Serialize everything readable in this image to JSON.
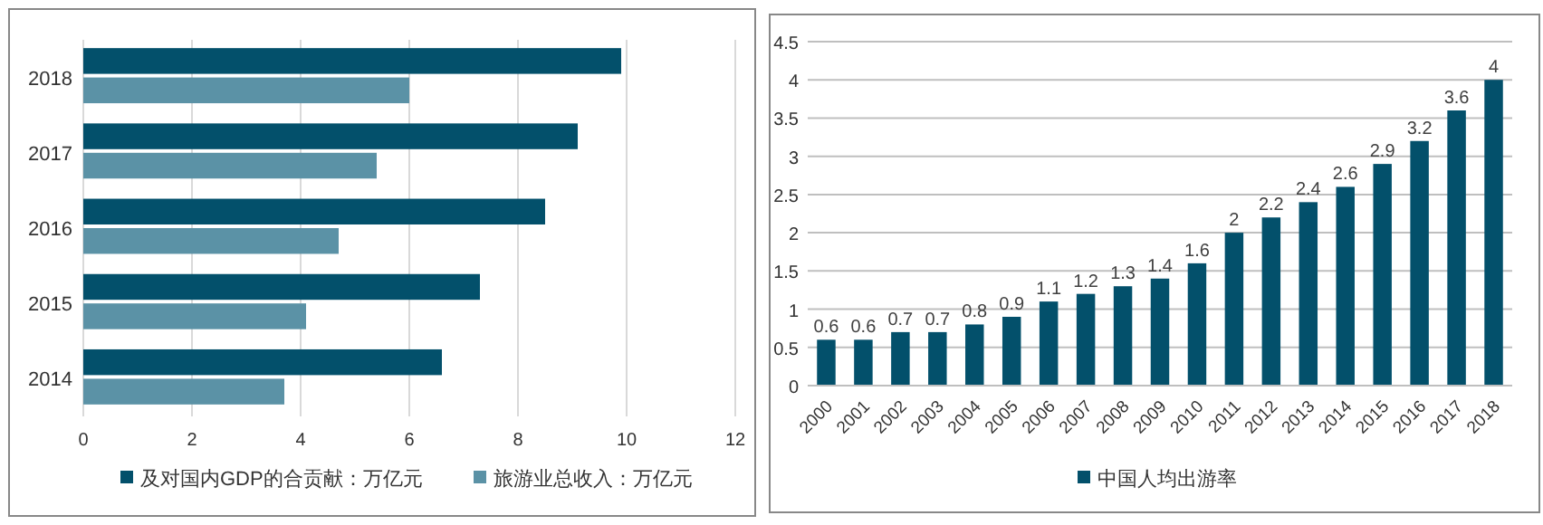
{
  "chart_data": [
    {
      "type": "bar",
      "orientation": "horizontal",
      "categories": [
        "2018",
        "2017",
        "2016",
        "2015",
        "2014"
      ],
      "series": [
        {
          "name": "及对国内GDP的合贡献：万亿元",
          "color": "#03506b",
          "values": [
            9.9,
            9.1,
            8.5,
            7.3,
            6.6
          ]
        },
        {
          "name": "旅游业总收入：万亿元",
          "color": "#5b92a6",
          "values": [
            6.0,
            5.4,
            4.7,
            4.1,
            3.7
          ]
        }
      ],
      "xlim": [
        0,
        12
      ],
      "xticks": [
        0,
        2,
        4,
        6,
        8,
        10,
        12
      ],
      "grid": "x",
      "legend": "bottom"
    },
    {
      "type": "bar",
      "categories": [
        "2000",
        "2001",
        "2002",
        "2003",
        "2004",
        "2005",
        "2006",
        "2007",
        "2008",
        "2009",
        "2010",
        "2011",
        "2012",
        "2013",
        "2014",
        "2015",
        "2016",
        "2017",
        "2018"
      ],
      "series": [
        {
          "name": "中国人均出游率",
          "color": "#03506b",
          "values": [
            0.6,
            0.6,
            0.7,
            0.7,
            0.8,
            0.9,
            1.1,
            1.2,
            1.3,
            1.4,
            1.6,
            2,
            2.2,
            2.4,
            2.6,
            2.9,
            3.2,
            3.6,
            4
          ]
        }
      ],
      "ylim": [
        0,
        4.5
      ],
      "yticks": [
        0,
        0.5,
        1,
        1.5,
        2,
        2.5,
        3,
        3.5,
        4,
        4.5
      ],
      "grid": "y",
      "legend": "bottom",
      "data_labels": true
    }
  ]
}
